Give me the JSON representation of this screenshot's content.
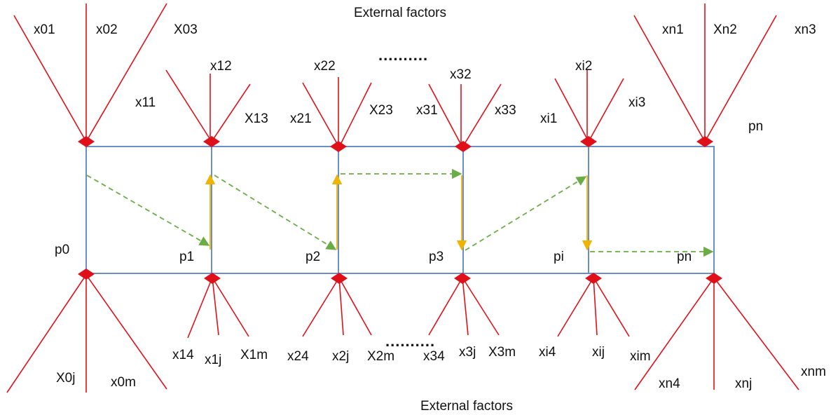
{
  "title_top": "External factors",
  "title_bottom": "External factors",
  "ellipsis_top": "..........",
  "ellipsis_bottom": "..........",
  "colors": {
    "red": "#e0101a",
    "blue": "#5b82c5",
    "green": "#6aad45",
    "yellow": "#f0b400",
    "text": "#111111",
    "background": "#ffffff"
  },
  "nodes": {
    "n0": "p0",
    "n1": "p1",
    "n2": "p2",
    "n3": "p3",
    "ni": "pi",
    "nn_top": "pn",
    "nn": "pn"
  },
  "factors": {
    "x01": "x01",
    "x02": "x02",
    "x03": "X03",
    "x11": "x11",
    "x12": "x12",
    "x13": "X13",
    "x21": "x21",
    "x22": "x22",
    "x23": "X23",
    "x31": "x31",
    "x32": "x32",
    "x33": "x33",
    "xi1": "xi1",
    "xi2": "xi2",
    "xi3": "xi3",
    "xn1": "xn1",
    "xn2": "Xn2",
    "xn3": "xn3",
    "x0j": "X0j",
    "x0m": "x0m",
    "x14": "x14",
    "x1j": "x1j",
    "x1m": "X1m",
    "x24": "x24",
    "x2j": "x2j",
    "x2m": "X2m",
    "x34": "x34",
    "x3j": "x3j",
    "x3m": "X3m",
    "xi4": "xi4",
    "xij": "xij",
    "xim": "xim",
    "xn4": "xn4",
    "xnj": "xnj",
    "xnm": "xnm"
  }
}
